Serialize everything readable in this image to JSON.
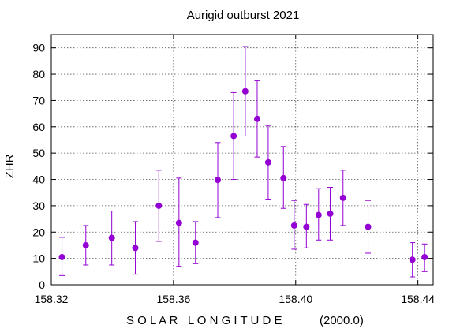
{
  "chart_data": {
    "type": "scatter",
    "title": "Aurigid outburst 2021",
    "xlabel_spaced": "S O L A R   L O N G I T U D E",
    "xlabel_suffix": "(2000.0)",
    "ylabel": "ZHR",
    "xlim": [
      158.32,
      158.445
    ],
    "ylim": [
      0,
      95
    ],
    "x_ticks": [
      158.32,
      158.36,
      158.4,
      158.44
    ],
    "x_tick_labels": [
      "158.32",
      "158.36",
      "158.40",
      "158.44"
    ],
    "y_ticks": [
      0,
      10,
      20,
      30,
      40,
      50,
      60,
      70,
      80,
      90
    ],
    "grid": true,
    "marker_color": "#9400d3",
    "points": [
      {
        "x": 158.3235,
        "y": 10.5,
        "lo": 3.5,
        "hi": 18.0
      },
      {
        "x": 158.3313,
        "y": 15.0,
        "lo": 7.5,
        "hi": 22.5
      },
      {
        "x": 158.3398,
        "y": 17.8,
        "lo": 7.5,
        "hi": 28.0
      },
      {
        "x": 158.3475,
        "y": 14.0,
        "lo": 4.0,
        "hi": 24.0
      },
      {
        "x": 158.3552,
        "y": 30.0,
        "lo": 16.5,
        "hi": 43.5
      },
      {
        "x": 158.3618,
        "y": 23.5,
        "lo": 7.0,
        "hi": 40.5
      },
      {
        "x": 158.3672,
        "y": 16.0,
        "lo": 8.0,
        "hi": 24.0
      },
      {
        "x": 158.3745,
        "y": 39.8,
        "lo": 25.5,
        "hi": 54.0
      },
      {
        "x": 158.3797,
        "y": 56.5,
        "lo": 40.0,
        "hi": 73.0
      },
      {
        "x": 158.3835,
        "y": 73.5,
        "lo": 56.5,
        "hi": 90.5
      },
      {
        "x": 158.3874,
        "y": 63.0,
        "lo": 48.5,
        "hi": 77.5
      },
      {
        "x": 158.391,
        "y": 46.5,
        "lo": 32.5,
        "hi": 60.5
      },
      {
        "x": 158.396,
        "y": 40.5,
        "lo": 29.0,
        "hi": 52.5
      },
      {
        "x": 158.3995,
        "y": 22.5,
        "lo": 13.5,
        "hi": 32.0
      },
      {
        "x": 158.4035,
        "y": 22.0,
        "lo": 14.0,
        "hi": 30.5
      },
      {
        "x": 158.4075,
        "y": 26.5,
        "lo": 17.0,
        "hi": 36.5
      },
      {
        "x": 158.4113,
        "y": 27.0,
        "lo": 17.0,
        "hi": 37.0
      },
      {
        "x": 158.4155,
        "y": 33.0,
        "lo": 22.5,
        "hi": 43.5
      },
      {
        "x": 158.4237,
        "y": 22.0,
        "lo": 12.0,
        "hi": 32.0
      },
      {
        "x": 158.4382,
        "y": 9.5,
        "lo": 3.0,
        "hi": 16.0
      },
      {
        "x": 158.4422,
        "y": 10.5,
        "lo": 5.0,
        "hi": 15.5
      }
    ]
  }
}
